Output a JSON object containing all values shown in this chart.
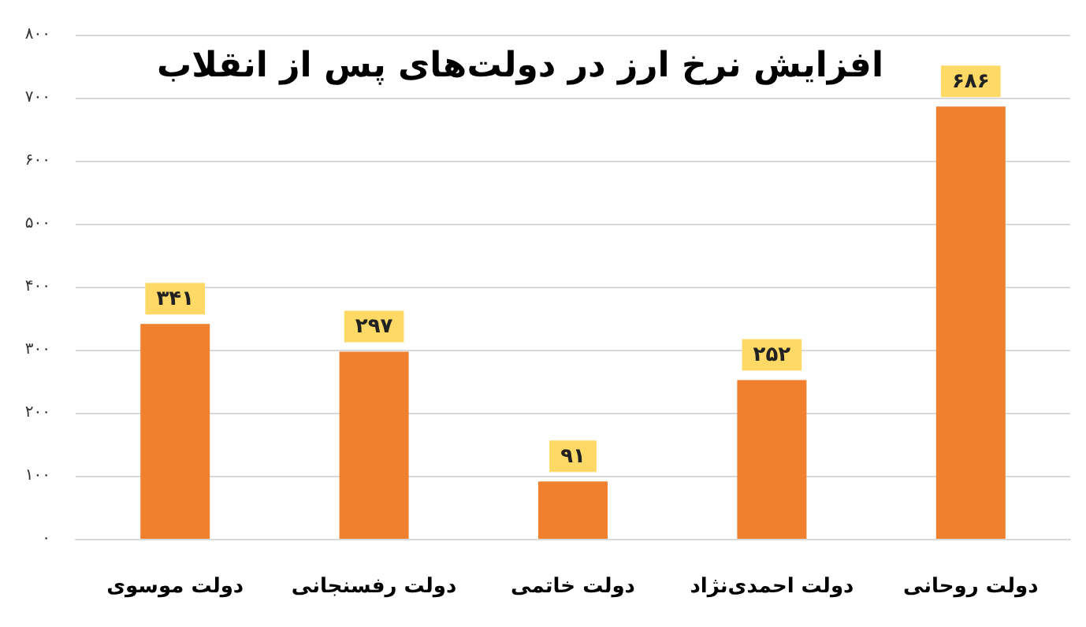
{
  "chart_data": {
    "type": "bar",
    "title": "افزایش نرخ ارز در دولت‌های پس از انقلاب",
    "categories": [
      "دولت موسوی",
      "دولت رفسنجانی",
      "دولت خاتمی",
      "دولت احمدی‌نژاد",
      "دولت روحانی"
    ],
    "values": [
      341,
      297,
      91,
      252,
      686
    ],
    "value_labels": [
      "۳۴۱",
      "۲۹۷",
      "۹۱",
      "۲۵۲",
      "۶۸۶"
    ],
    "color": "#f07f2e",
    "ylim": [
      0,
      800
    ],
    "yticks": [
      {
        "value": 0,
        "label": "۰"
      },
      {
        "value": 100,
        "label": "۱۰۰"
      },
      {
        "value": 200,
        "label": "۲۰۰"
      },
      {
        "value": 300,
        "label": "۳۰۰"
      },
      {
        "value": 400,
        "label": "۴۰۰"
      },
      {
        "value": 500,
        "label": "۵۰۰"
      },
      {
        "value": 600,
        "label": "۶۰۰"
      },
      {
        "value": 700,
        "label": "۷۰۰"
      },
      {
        "value": 800,
        "label": "۸۰۰"
      }
    ],
    "grid": "y"
  }
}
